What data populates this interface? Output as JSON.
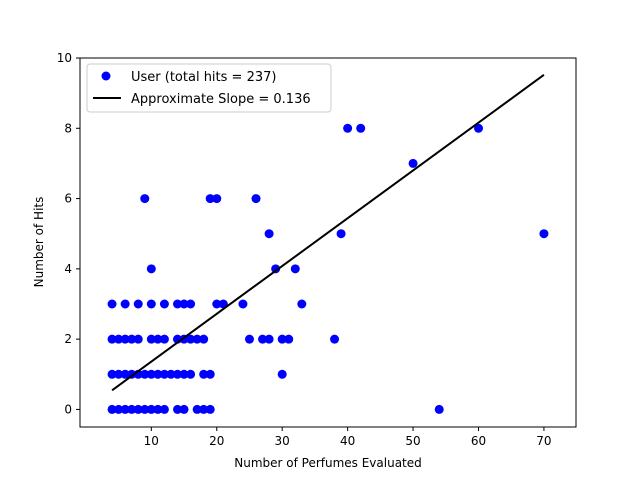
{
  "chart_data": {
    "type": "scatter",
    "xlabel": "Number of Perfumes Evaluated",
    "ylabel": "Number of Hits",
    "xlim": [
      -0.9,
      74.9
    ],
    "ylim": [
      -0.5,
      10
    ],
    "xticks": [
      10,
      20,
      30,
      40,
      50,
      60,
      70
    ],
    "yticks": [
      0,
      2,
      4,
      6,
      8,
      10
    ],
    "grid": false,
    "legend_position": "upper-left",
    "series": [
      {
        "name": "User (total hits = 237)",
        "color": "#0000ff",
        "points": [
          [
            4,
            0
          ],
          [
            5,
            0
          ],
          [
            6,
            0
          ],
          [
            7,
            0
          ],
          [
            8,
            0
          ],
          [
            9,
            0
          ],
          [
            10,
            0
          ],
          [
            11,
            0
          ],
          [
            12,
            0
          ],
          [
            14,
            0
          ],
          [
            15,
            0
          ],
          [
            17,
            0
          ],
          [
            18,
            0
          ],
          [
            19,
            0
          ],
          [
            54,
            0
          ],
          [
            4,
            1
          ],
          [
            5,
            1
          ],
          [
            6,
            1
          ],
          [
            7,
            1
          ],
          [
            8,
            1
          ],
          [
            9,
            1
          ],
          [
            10,
            1
          ],
          [
            11,
            1
          ],
          [
            12,
            1
          ],
          [
            13,
            1
          ],
          [
            14,
            1
          ],
          [
            15,
            1
          ],
          [
            16,
            1
          ],
          [
            18,
            1
          ],
          [
            19,
            1
          ],
          [
            30,
            1
          ],
          [
            4,
            2
          ],
          [
            5,
            2
          ],
          [
            6,
            2
          ],
          [
            7,
            2
          ],
          [
            8,
            2
          ],
          [
            10,
            2
          ],
          [
            11,
            2
          ],
          [
            12,
            2
          ],
          [
            14,
            2
          ],
          [
            15,
            2
          ],
          [
            16,
            2
          ],
          [
            17,
            2
          ],
          [
            18,
            2
          ],
          [
            25,
            2
          ],
          [
            27,
            2
          ],
          [
            28,
            2
          ],
          [
            30,
            2
          ],
          [
            31,
            2
          ],
          [
            38,
            2
          ],
          [
            4,
            3
          ],
          [
            6,
            3
          ],
          [
            8,
            3
          ],
          [
            10,
            3
          ],
          [
            12,
            3
          ],
          [
            14,
            3
          ],
          [
            15,
            3
          ],
          [
            16,
            3
          ],
          [
            20,
            3
          ],
          [
            21,
            3
          ],
          [
            24,
            3
          ],
          [
            33,
            3
          ],
          [
            10,
            4
          ],
          [
            29,
            4
          ],
          [
            32,
            4
          ],
          [
            28,
            5
          ],
          [
            39,
            5
          ],
          [
            70,
            5
          ],
          [
            9,
            6
          ],
          [
            19,
            6
          ],
          [
            20,
            6
          ],
          [
            26,
            6
          ],
          [
            50,
            7
          ],
          [
            40,
            8
          ],
          [
            42,
            8
          ],
          [
            60,
            8
          ]
        ]
      },
      {
        "name": "Approximate Slope = 0.136",
        "color": "#000000",
        "line": [
          [
            4,
            0.544
          ],
          [
            70,
            9.52
          ]
        ]
      }
    ]
  }
}
